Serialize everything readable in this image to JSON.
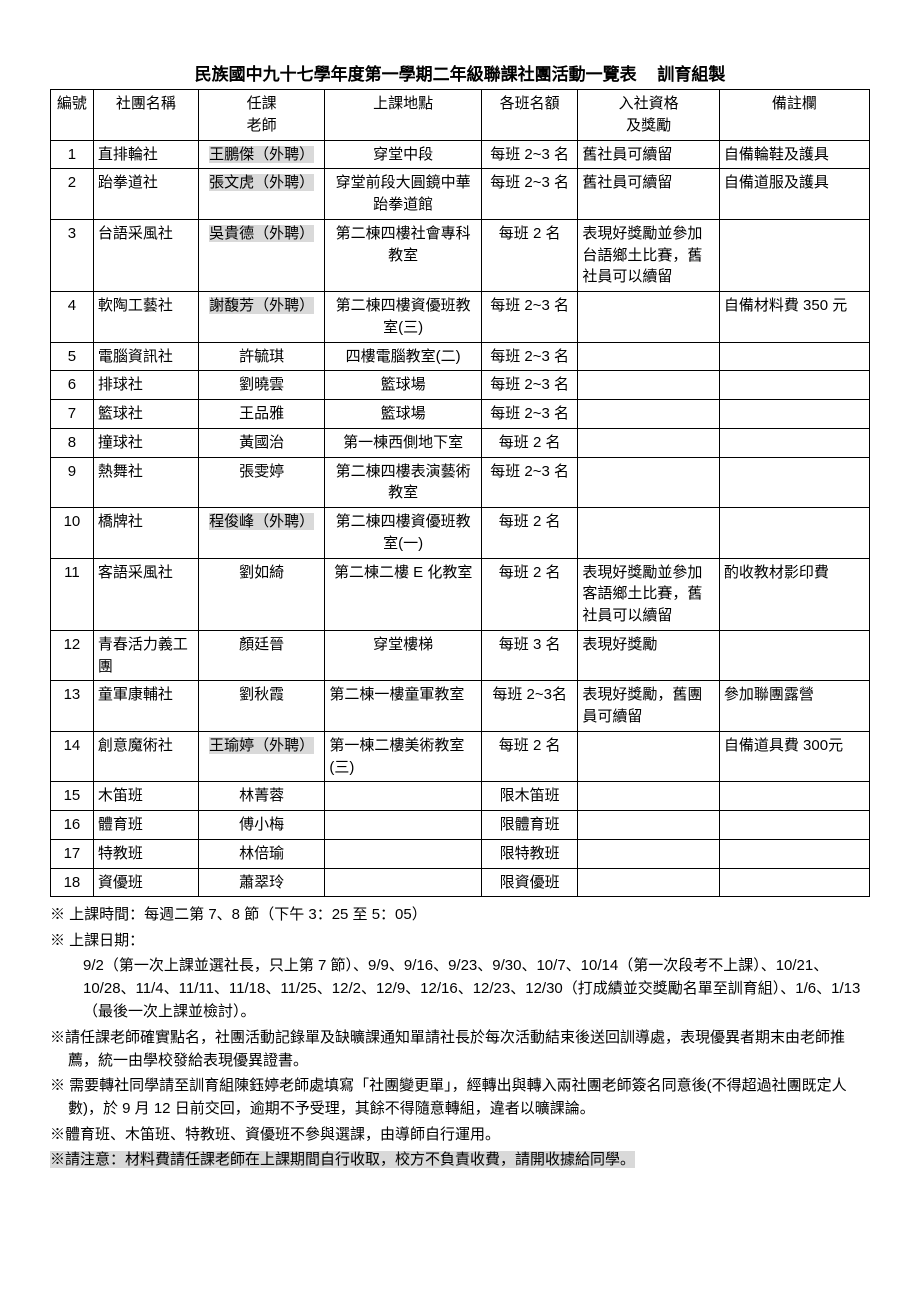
{
  "title_main": "民族國中九十七學年度第一學期二年級聯課社團活動一覽表",
  "title_suffix": "訓育組製",
  "headers": {
    "id": "編號",
    "name": "社團名稱",
    "teacher1": "任課",
    "teacher2": "老師",
    "place": "上課地點",
    "quota": "各班名額",
    "qual1": "入社資格",
    "qual2": "及獎勵",
    "note": "備註欄"
  },
  "rows": [
    {
      "id": "1",
      "name": "直排輪社",
      "teacher": "王鵬傑（外聘）",
      "teacher_hl": true,
      "place": "穿堂中段",
      "place_align": "center",
      "quota": "每班 2~3 名",
      "qual": "舊社員可續留",
      "note": "自備輪鞋及護具"
    },
    {
      "id": "2",
      "name": "跆拳道社",
      "teacher": "張文虎（外聘）",
      "teacher_hl": true,
      "place": "穿堂前段大圓鏡中華跆拳道館",
      "place_align": "center",
      "quota": "每班 2~3 名",
      "qual": "舊社員可續留",
      "note": "自備道服及護具"
    },
    {
      "id": "3",
      "name": "台語采風社",
      "teacher": "吳貴德（外聘）",
      "teacher_hl": true,
      "place": "第二棟四樓社會專科教室",
      "place_align": "center",
      "quota": "每班 2 名",
      "qual": "表現好獎勵並參加台語鄉土比賽，舊社員可以續留",
      "note": ""
    },
    {
      "id": "4",
      "name": "軟陶工藝社",
      "teacher": "謝馥芳（外聘）",
      "teacher_hl": true,
      "place": "第二棟四樓資優班教室(三)",
      "place_align": "center",
      "quota": "每班 2~3 名",
      "qual": "",
      "note": "自備材料費 350 元"
    },
    {
      "id": "5",
      "name": "電腦資訊社",
      "teacher": "許毓琪",
      "teacher_hl": false,
      "place": "四樓電腦教室(二)",
      "place_align": "center",
      "quota": "每班 2~3 名",
      "qual": "",
      "note": ""
    },
    {
      "id": "6",
      "name": "排球社",
      "teacher": "劉曉雲",
      "teacher_hl": false,
      "place": "籃球場",
      "place_align": "center",
      "quota": "每班 2~3 名",
      "qual": "",
      "note": ""
    },
    {
      "id": "7",
      "name": "籃球社",
      "teacher": "王品雅",
      "teacher_hl": false,
      "place": "籃球場",
      "place_align": "center",
      "quota": "每班 2~3 名",
      "qual": "",
      "note": ""
    },
    {
      "id": "8",
      "name": "撞球社",
      "teacher": "黃國治",
      "teacher_hl": false,
      "place": "第一棟西側地下室",
      "place_align": "center",
      "quota": "每班 2 名",
      "qual": "",
      "note": ""
    },
    {
      "id": "9",
      "name": "熱舞社",
      "teacher": "張雯婷",
      "teacher_hl": false,
      "place": "第二棟四樓表演藝術教室",
      "place_align": "center",
      "quota": "每班 2~3 名",
      "qual": "",
      "note": ""
    },
    {
      "id": "10",
      "name": "橋牌社",
      "teacher": "程俊峰（外聘）",
      "teacher_hl": true,
      "place": "第二棟四樓資優班教室(一)",
      "place_align": "center",
      "quota": "每班 2 名",
      "qual": "",
      "note": ""
    },
    {
      "id": "11",
      "name": "客語采風社",
      "teacher": "劉如綺",
      "teacher_hl": false,
      "place": "第二棟二樓 E 化教室",
      "place_align": "center",
      "quota": "每班 2 名",
      "qual": "表現好獎勵並參加客語鄉土比賽，舊社員可以續留",
      "note": "酌收教材影印費"
    },
    {
      "id": "12",
      "name": "青春活力義工團",
      "teacher": "顏廷晉",
      "teacher_hl": false,
      "place": "穿堂樓梯",
      "place_align": "center",
      "quota": "每班 3 名",
      "qual": "表現好獎勵",
      "note": ""
    },
    {
      "id": "13",
      "name": "童軍康輔社",
      "teacher": "劉秋霞",
      "teacher_hl": false,
      "place": "第二棟一樓童軍教室",
      "place_align": "left",
      "quota": "每班 2~3名",
      "qual": "表現好獎勵，舊團員可續留",
      "note": "參加聯團露營"
    },
    {
      "id": "14",
      "name": "創意魔術社",
      "teacher": "王瑜婷（外聘）",
      "teacher_hl": true,
      "place": "第一棟二樓美術教室(三)",
      "place_align": "left",
      "quota": "每班 2 名",
      "qual": "",
      "note": "自備道具費 300元"
    },
    {
      "id": "15",
      "name": "木笛班",
      "teacher": "林菁蓉",
      "teacher_hl": false,
      "place": "",
      "place_align": "center",
      "quota": "限木笛班",
      "qual": "",
      "note": ""
    },
    {
      "id": "16",
      "name": "體育班",
      "teacher": "傅小梅",
      "teacher_hl": false,
      "place": "",
      "place_align": "center",
      "quota": "限體育班",
      "qual": "",
      "note": ""
    },
    {
      "id": "17",
      "name": "特教班",
      "teacher": "林倍瑜",
      "teacher_hl": false,
      "place": "",
      "place_align": "center",
      "quota": "限特教班",
      "qual": "",
      "note": ""
    },
    {
      "id": "18",
      "name": "資優班",
      "teacher": "蕭翠玲",
      "teacher_hl": false,
      "place": "",
      "place_align": "center",
      "quota": "限資優班",
      "qual": "",
      "note": ""
    }
  ],
  "footnotes": {
    "n1": "※ 上課時間：每週二第 7、8 節（下午 3：25 至 5：05）",
    "n2": "※ 上課日期：",
    "n2a": "9/2（第一次上課並選社長，只上第 7 節）、9/9、9/16、9/23、9/30、10/7、10/14（第一次段考不上課）、10/21、10/28、11/4、11/11、11/18、11/25、12/2、12/9、12/16、12/23、12/30（打成績並交獎勵名單至訓育組）、1/6、1/13（最後一次上課並檢討）。",
    "n3": "※請任課老師確實點名，社團活動記錄單及缺曠課通知單請社長於每次活動結束後送回訓導處，表現優異者期末由老師推薦，統一由學校發給表現優異證書。",
    "n4": "※ 需要轉社同學請至訓育組陳鈺婷老師處填寫「社團變更單」，經轉出與轉入兩社團老師簽名同意後(不得超過社團既定人數)，於 9 月 12 日前交回，逾期不予受理，其餘不得隨意轉組，違者以曠課論。",
    "n5": "※體育班、木笛班、特教班、資優班不參與選課，由導師自行運用。",
    "n6": "※請注意：材料費請任課老師在上課期間自行收取，校方不負責收費，請開收據給同學。"
  }
}
